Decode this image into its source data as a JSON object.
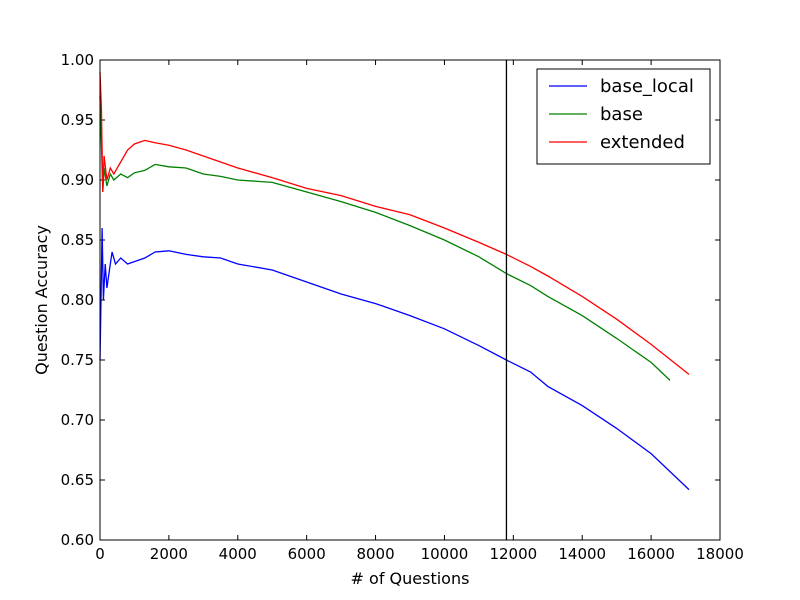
{
  "chart_data": {
    "type": "line",
    "title": "",
    "xlabel": "# of Questions",
    "ylabel": "Question Accuracy",
    "xlim": [
      0,
      18000
    ],
    "ylim": [
      0.6,
      1.0
    ],
    "x_ticks": [
      0,
      2000,
      4000,
      6000,
      8000,
      10000,
      12000,
      14000,
      16000,
      18000
    ],
    "x_tick_labels": [
      "0",
      "2000",
      "4000",
      "6000",
      "8000",
      "10000",
      "12000",
      "14000",
      "16000",
      "18000"
    ],
    "y_ticks": [
      0.6,
      0.65,
      0.7,
      0.75,
      0.8,
      0.85,
      0.9,
      0.95,
      1.0
    ],
    "y_tick_labels": [
      "0.60",
      "0.65",
      "0.70",
      "0.75",
      "0.80",
      "0.85",
      "0.90",
      "0.95",
      "1.00"
    ],
    "grid": false,
    "legend_position": "top-right",
    "vertical_line_x": 11800,
    "series": [
      {
        "name": "base_local",
        "color": "#0000ff",
        "points": [
          [
            0,
            0.75
          ],
          [
            30,
            0.8
          ],
          [
            60,
            0.86
          ],
          [
            100,
            0.8
          ],
          [
            150,
            0.83
          ],
          [
            200,
            0.81
          ],
          [
            300,
            0.83
          ],
          [
            350,
            0.84
          ],
          [
            450,
            0.83
          ],
          [
            600,
            0.835
          ],
          [
            800,
            0.83
          ],
          [
            1000,
            0.832
          ],
          [
            1300,
            0.835
          ],
          [
            1600,
            0.84
          ],
          [
            2000,
            0.841
          ],
          [
            2500,
            0.838
          ],
          [
            3000,
            0.836
          ],
          [
            3500,
            0.835
          ],
          [
            4000,
            0.83
          ],
          [
            5000,
            0.825
          ],
          [
            6000,
            0.815
          ],
          [
            7000,
            0.805
          ],
          [
            8000,
            0.797
          ],
          [
            9000,
            0.787
          ],
          [
            10000,
            0.776
          ],
          [
            11000,
            0.762
          ],
          [
            11800,
            0.75
          ],
          [
            12500,
            0.74
          ],
          [
            13000,
            0.728
          ],
          [
            14000,
            0.712
          ],
          [
            15000,
            0.693
          ],
          [
            16000,
            0.672
          ],
          [
            17100,
            0.642
          ]
        ]
      },
      {
        "name": "base",
        "color": "#008000",
        "points": [
          [
            0,
            0.97
          ],
          [
            40,
            0.93
          ],
          [
            80,
            0.89
          ],
          [
            120,
            0.91
          ],
          [
            200,
            0.895
          ],
          [
            300,
            0.905
          ],
          [
            400,
            0.9
          ],
          [
            600,
            0.905
          ],
          [
            800,
            0.902
          ],
          [
            1000,
            0.906
          ],
          [
            1300,
            0.908
          ],
          [
            1600,
            0.913
          ],
          [
            2000,
            0.911
          ],
          [
            2500,
            0.91
          ],
          [
            3000,
            0.905
          ],
          [
            3500,
            0.903
          ],
          [
            4000,
            0.9
          ],
          [
            5000,
            0.898
          ],
          [
            6000,
            0.89
          ],
          [
            7000,
            0.882
          ],
          [
            8000,
            0.873
          ],
          [
            9000,
            0.862
          ],
          [
            10000,
            0.85
          ],
          [
            11000,
            0.836
          ],
          [
            11800,
            0.822
          ],
          [
            12500,
            0.812
          ],
          [
            13000,
            0.803
          ],
          [
            14000,
            0.787
          ],
          [
            15000,
            0.768
          ],
          [
            16000,
            0.748
          ],
          [
            16550,
            0.733
          ]
        ]
      },
      {
        "name": "extended",
        "color": "#ff0000",
        "points": [
          [
            0,
            0.99
          ],
          [
            40,
            0.96
          ],
          [
            80,
            0.89
          ],
          [
            120,
            0.92
          ],
          [
            200,
            0.9
          ],
          [
            300,
            0.91
          ],
          [
            400,
            0.905
          ],
          [
            600,
            0.915
          ],
          [
            800,
            0.925
          ],
          [
            1000,
            0.93
          ],
          [
            1300,
            0.933
          ],
          [
            1600,
            0.931
          ],
          [
            2000,
            0.929
          ],
          [
            2500,
            0.925
          ],
          [
            3000,
            0.92
          ],
          [
            3500,
            0.915
          ],
          [
            4000,
            0.91
          ],
          [
            5000,
            0.902
          ],
          [
            6000,
            0.893
          ],
          [
            7000,
            0.887
          ],
          [
            8000,
            0.878
          ],
          [
            9000,
            0.871
          ],
          [
            10000,
            0.86
          ],
          [
            11000,
            0.848
          ],
          [
            11800,
            0.838
          ],
          [
            12500,
            0.828
          ],
          [
            13000,
            0.82
          ],
          [
            14000,
            0.803
          ],
          [
            15000,
            0.784
          ],
          [
            16000,
            0.763
          ],
          [
            17100,
            0.738
          ]
        ]
      }
    ]
  }
}
